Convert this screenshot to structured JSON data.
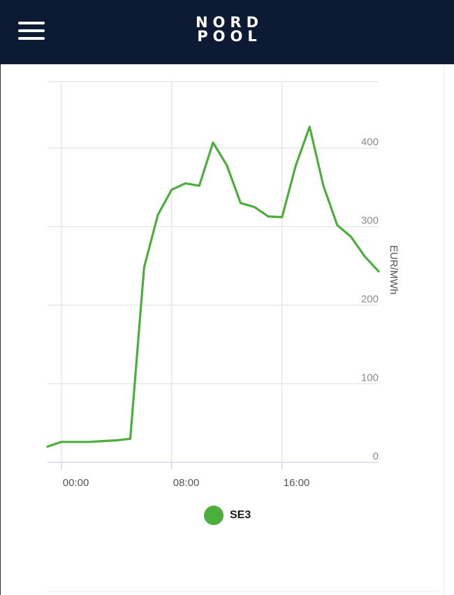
{
  "header": {
    "logo_line1": "NORD",
    "logo_line2": "POOL",
    "menu_icon": "hamburger-menu-icon"
  },
  "chart_data": {
    "type": "line",
    "title": "",
    "xlabel": "",
    "ylabel": "EUR/MWh",
    "ylim": [
      0,
      490
    ],
    "yticks": [
      0,
      100,
      200,
      300,
      400
    ],
    "xtick_labels": [
      "00:00",
      "08:00",
      "16:00"
    ],
    "xtick_hours": [
      0,
      8,
      16
    ],
    "xlim": [
      -1,
      23
    ],
    "grid": true,
    "legend": "bottom-center",
    "series": [
      {
        "name": "SE3",
        "color": "#4caf3c",
        "x": [
          -1,
          0,
          1,
          2,
          3,
          4,
          5,
          6,
          7,
          8,
          9,
          10,
          11,
          12,
          13,
          14,
          15,
          16,
          17,
          18,
          19,
          20,
          21,
          22,
          23
        ],
        "values": [
          20,
          26,
          26,
          26,
          27,
          28,
          30,
          248,
          315,
          347,
          355,
          352,
          407,
          378,
          330,
          325,
          313,
          312,
          378,
          427,
          352,
          302,
          287,
          262,
          243
        ]
      }
    ]
  }
}
